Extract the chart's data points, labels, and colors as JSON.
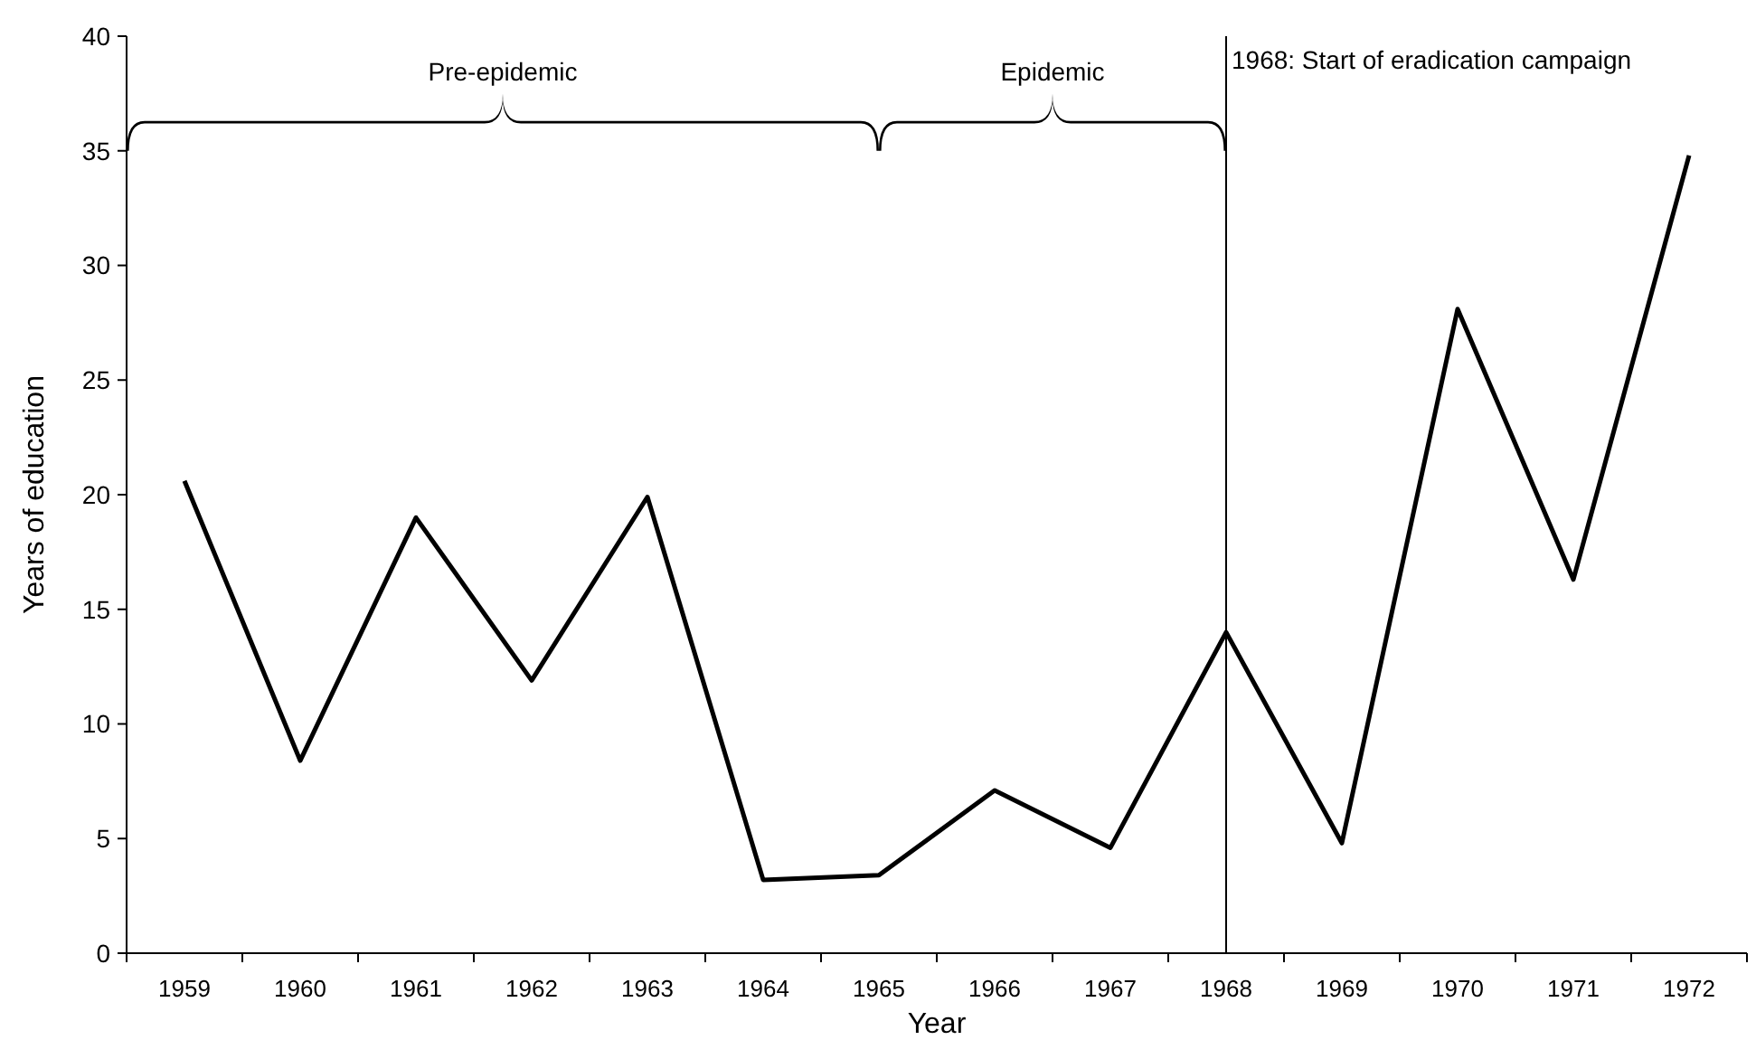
{
  "chart_data": {
    "type": "line",
    "xlabel": "Year",
    "ylabel": "Years of education",
    "categories": [
      "1959",
      "1960",
      "1961",
      "1962",
      "1963",
      "1964",
      "1965",
      "1966",
      "1967",
      "1968",
      "1969",
      "1970",
      "1971",
      "1972"
    ],
    "series": [
      {
        "color": "#000000",
        "values": [
          20.6,
          8.4,
          19.0,
          11.9,
          19.9,
          3.2,
          3.4,
          7.1,
          4.6,
          14.0,
          4.8,
          28.1,
          16.3,
          34.8
        ]
      }
    ],
    "ylim": [
      0,
      40
    ],
    "yticks": [
      0,
      5,
      10,
      15,
      20,
      25,
      30,
      35,
      40
    ],
    "ref_lines": [
      {
        "axis": "x",
        "value": "1968",
        "label": "1968: Start of eradication campaign",
        "color": "#000000"
      }
    ],
    "annotations": [
      "Pre-epidemic",
      "Epidemic"
    ],
    "grid": false,
    "marker": "none",
    "line_style": "solid"
  }
}
